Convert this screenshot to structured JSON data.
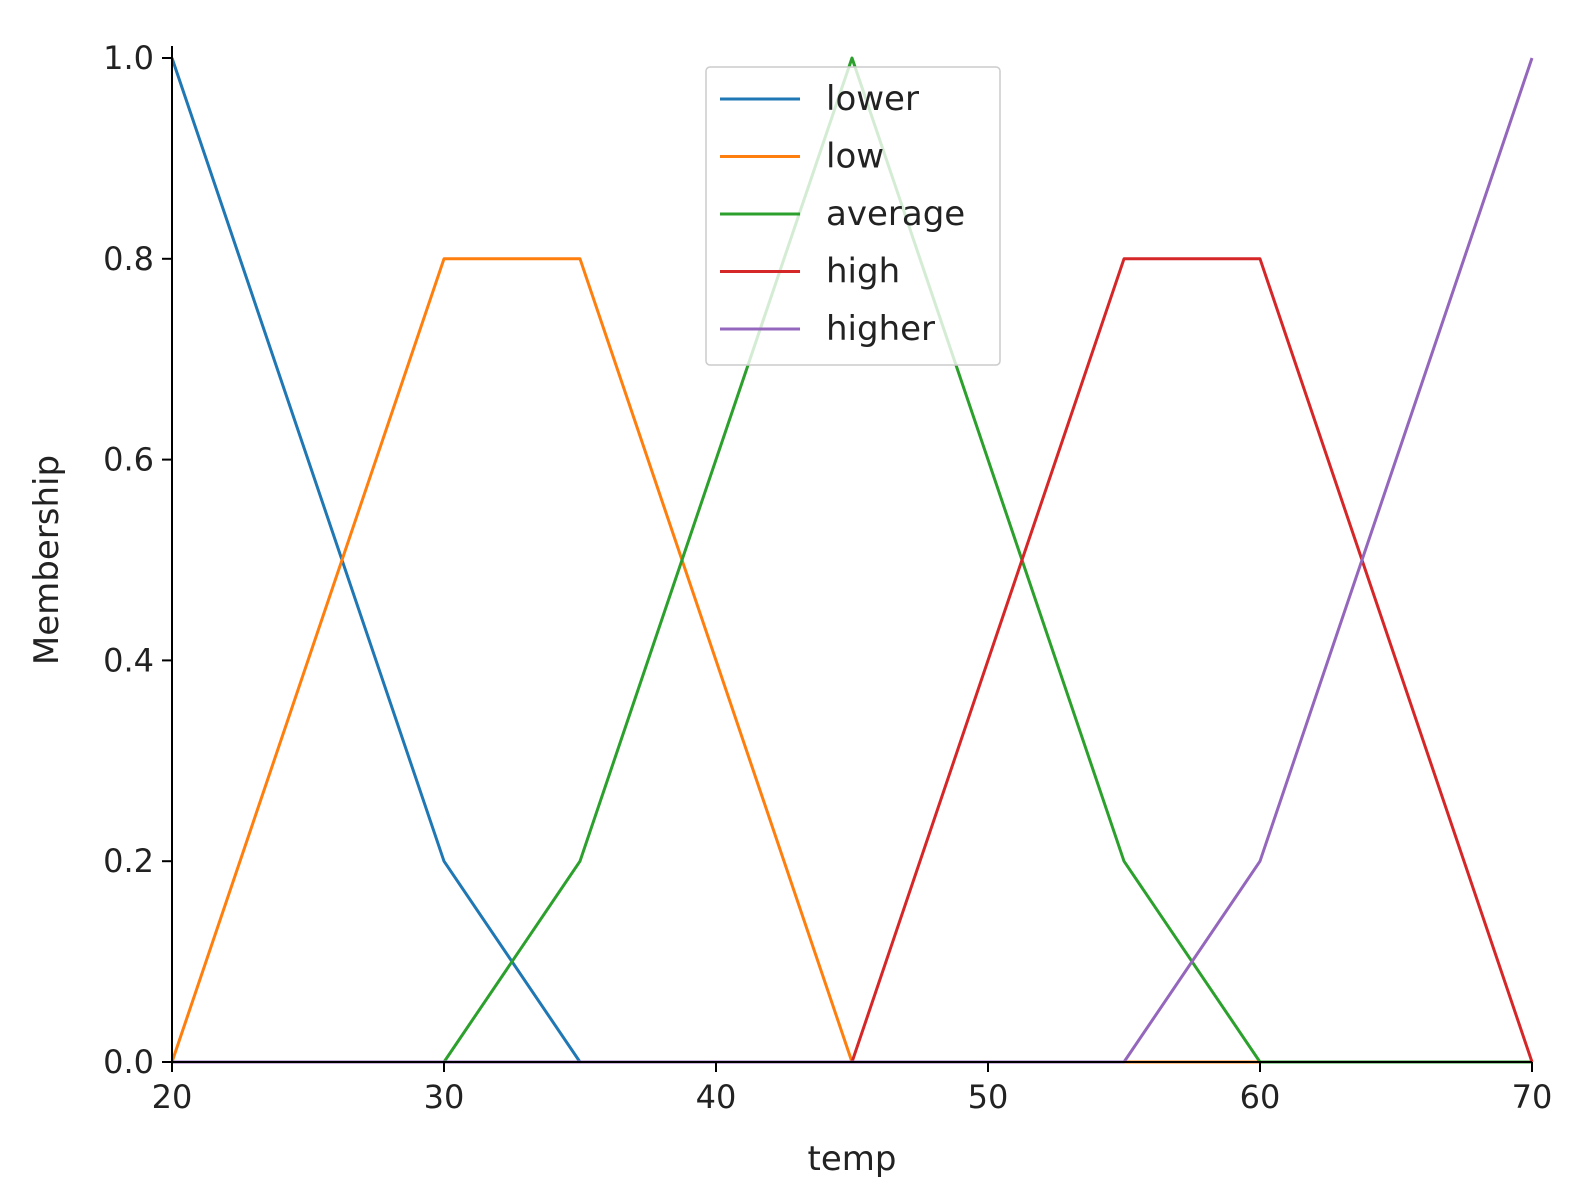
{
  "chart_data": {
    "type": "line",
    "xlabel": "temp",
    "ylabel": "Membership",
    "xlim": [
      20,
      70
    ],
    "ylim": [
      0,
      1
    ],
    "xticks": [
      20,
      30,
      40,
      50,
      60,
      70
    ],
    "xtick_labels": [
      "20",
      "30",
      "40",
      "50",
      "60",
      "70"
    ],
    "yticks": [
      0,
      0.2,
      0.4,
      0.6,
      0.8,
      1.0
    ],
    "ytick_labels": [
      "0.0",
      "0.2",
      "0.4",
      "0.6",
      "0.8",
      "1.0"
    ],
    "grid": false,
    "legend_position": "top-center",
    "series": [
      {
        "name": "lower",
        "color": "#1f77b4",
        "x": [
          20,
          30,
          35,
          70
        ],
        "y": [
          1.0,
          0.2,
          0.0,
          0.0
        ]
      },
      {
        "name": "low",
        "color": "#ff7f0e",
        "x": [
          20,
          30,
          35,
          45,
          70
        ],
        "y": [
          0.0,
          0.8,
          0.8,
          0.0,
          0.0
        ]
      },
      {
        "name": "average",
        "color": "#2ca02c",
        "x": [
          20,
          30,
          35,
          45,
          55,
          60,
          70
        ],
        "y": [
          0.0,
          0.0,
          0.2,
          1.0,
          0.2,
          0.0,
          0.0
        ]
      },
      {
        "name": "high",
        "color": "#d62728",
        "x": [
          20,
          45,
          55,
          60,
          70
        ],
        "y": [
          0.0,
          0.0,
          0.8,
          0.8,
          0.0
        ]
      },
      {
        "name": "higher",
        "color": "#9467bd",
        "x": [
          20,
          55,
          60,
          70
        ],
        "y": [
          0.0,
          0.0,
          0.2,
          1.0
        ]
      }
    ]
  }
}
